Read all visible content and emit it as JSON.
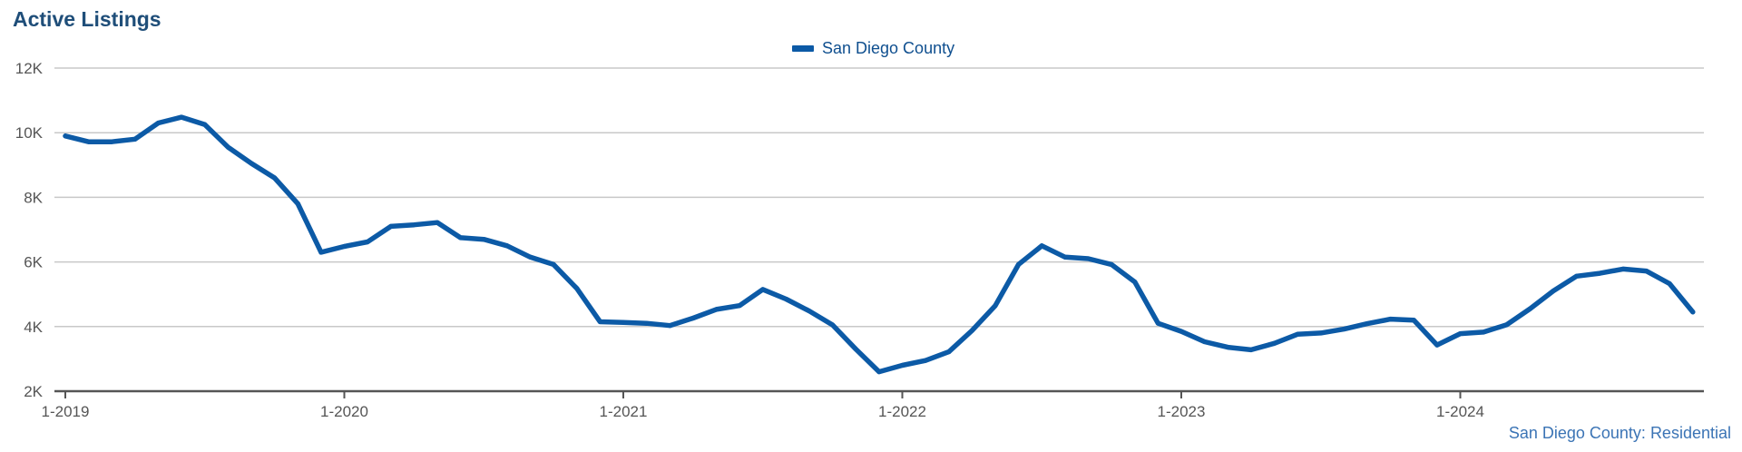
{
  "title": "Active Listings",
  "source_label": "San Diego County: Residential",
  "chart_data": {
    "type": "line",
    "title": "Active Listings",
    "xlabel": "",
    "ylabel": "",
    "ylim": [
      2000,
      12000
    ],
    "yticks": [
      2000,
      4000,
      6000,
      8000,
      10000,
      12000
    ],
    "ytick_labels": [
      "2K",
      "4K",
      "6K",
      "8K",
      "10K",
      "12K"
    ],
    "xticks": [
      "2019-01",
      "2020-01",
      "2021-01",
      "2022-01",
      "2023-01",
      "2024-01"
    ],
    "xtick_labels": [
      "1-2019",
      "1-2020",
      "1-2021",
      "1-2022",
      "1-2023",
      "1-2024"
    ],
    "grid": true,
    "legend_position": "top-center",
    "colors": {
      "series": "#0c5aa6",
      "grid": "#c8c8c8",
      "axis": "#555555"
    },
    "x": [
      "2019-01",
      "2019-02",
      "2019-03",
      "2019-04",
      "2019-05",
      "2019-06",
      "2019-07",
      "2019-08",
      "2019-09",
      "2019-10",
      "2019-11",
      "2019-12",
      "2020-01",
      "2020-02",
      "2020-03",
      "2020-04",
      "2020-05",
      "2020-06",
      "2020-07",
      "2020-08",
      "2020-09",
      "2020-10",
      "2020-11",
      "2020-12",
      "2021-01",
      "2021-02",
      "2021-03",
      "2021-04",
      "2021-05",
      "2021-06",
      "2021-07",
      "2021-08",
      "2021-09",
      "2021-10",
      "2021-11",
      "2021-12",
      "2022-01",
      "2022-02",
      "2022-03",
      "2022-04",
      "2022-05",
      "2022-06",
      "2022-07",
      "2022-08",
      "2022-09",
      "2022-10",
      "2022-11",
      "2022-12",
      "2023-01",
      "2023-02",
      "2023-03",
      "2023-04",
      "2023-05",
      "2023-06",
      "2023-07",
      "2023-08",
      "2023-09",
      "2023-10",
      "2023-11",
      "2023-12",
      "2024-01",
      "2024-02",
      "2024-03",
      "2024-04",
      "2024-05",
      "2024-06",
      "2024-07",
      "2024-08",
      "2024-09",
      "2024-10",
      "2024-11"
    ],
    "series": [
      {
        "name": "San Diego County",
        "values": [
          9900,
          9720,
          9720,
          9800,
          10300,
          10480,
          10250,
          9550,
          9050,
          8600,
          7800,
          6300,
          6480,
          6620,
          7100,
          7150,
          7220,
          6750,
          6700,
          6500,
          6150,
          5920,
          5180,
          4150,
          4130,
          4100,
          4030,
          4260,
          4530,
          4650,
          5150,
          4850,
          4480,
          4050,
          3300,
          2600,
          2800,
          2950,
          3220,
          3880,
          4650,
          5920,
          6500,
          6150,
          6100,
          5920,
          5380,
          4100,
          3850,
          3530,
          3360,
          3280,
          3480,
          3760,
          3800,
          3920,
          4090,
          4230,
          4200,
          3430,
          3780,
          3830,
          4060,
          4550,
          5100,
          5560,
          5650,
          5780,
          5720,
          5330,
          4450
        ]
      }
    ]
  }
}
